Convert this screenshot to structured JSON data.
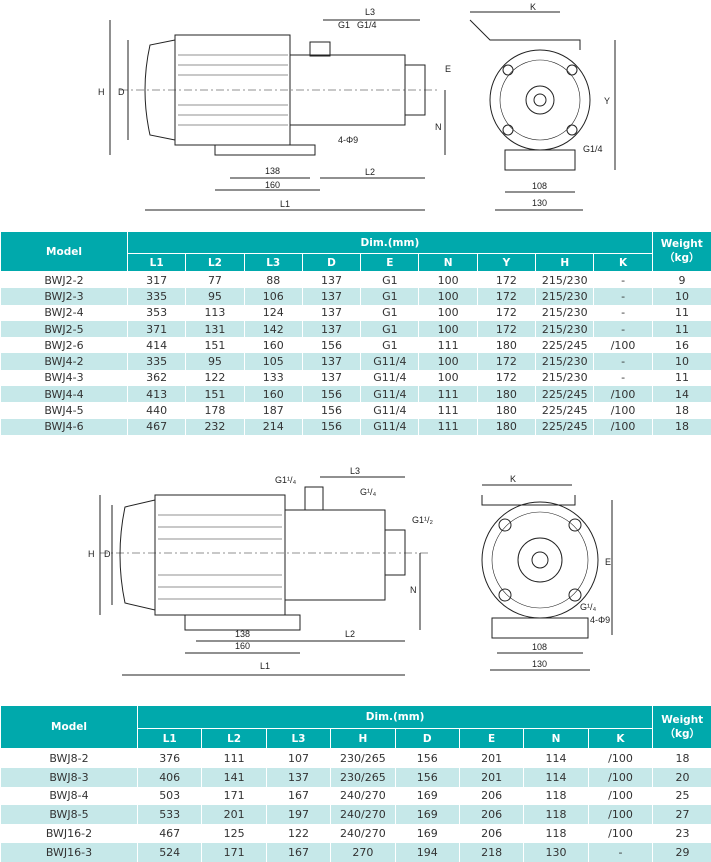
{
  "drawing1": {
    "labels": {
      "L1": "L1",
      "L2": "L2",
      "L3": "L3",
      "H": "H",
      "D": "D",
      "N": "N",
      "E": "E",
      "G1": "G1",
      "G14": "G1/4",
      "K": "K",
      "Y": "Y",
      "G14b": "G1/4",
      "holes": "4-Φ9",
      "d138": "138",
      "d160": "160",
      "d108": "108",
      "d130": "130"
    }
  },
  "table1": {
    "model_header": "Model",
    "dim_header": "Dim.(mm)",
    "weight_header": "Weight",
    "weight_unit": "（kg）",
    "columns": [
      "L1",
      "L2",
      "L3",
      "D",
      "E",
      "N",
      "Y",
      "H",
      "K"
    ],
    "rows": [
      [
        "BWJ2-2",
        "317",
        "77",
        "88",
        "137",
        "G1",
        "100",
        "172",
        "215/230",
        "-",
        "9"
      ],
      [
        "BWJ2-3",
        "335",
        "95",
        "106",
        "137",
        "G1",
        "100",
        "172",
        "215/230",
        "-",
        "10"
      ],
      [
        "BWJ2-4",
        "353",
        "113",
        "124",
        "137",
        "G1",
        "100",
        "172",
        "215/230",
        "-",
        "11"
      ],
      [
        "BWJ2-5",
        "371",
        "131",
        "142",
        "137",
        "G1",
        "100",
        "172",
        "215/230",
        "-",
        "11"
      ],
      [
        "BWJ2-6",
        "414",
        "151",
        "160",
        "156",
        "G1",
        "111",
        "180",
        "225/245",
        "/100",
        "16"
      ],
      [
        "BWJ4-2",
        "335",
        "95",
        "105",
        "137",
        "G11/4",
        "100",
        "172",
        "215/230",
        "-",
        "10"
      ],
      [
        "BWJ4-3",
        "362",
        "122",
        "133",
        "137",
        "G11/4",
        "100",
        "172",
        "215/230",
        "-",
        "11"
      ],
      [
        "BWJ4-4",
        "413",
        "151",
        "160",
        "156",
        "G11/4",
        "111",
        "180",
        "225/245",
        "/100",
        "14"
      ],
      [
        "BWJ4-5",
        "440",
        "178",
        "187",
        "156",
        "G11/4",
        "111",
        "180",
        "225/245",
        "/100",
        "18"
      ],
      [
        "BWJ4-6",
        "467",
        "232",
        "214",
        "156",
        "G11/4",
        "111",
        "180",
        "225/245",
        "/100",
        "18"
      ]
    ]
  },
  "drawing2": {
    "labels": {
      "L1": "L1",
      "L2": "L2",
      "L3": "L3",
      "H": "H",
      "D": "D",
      "N": "N",
      "E": "E",
      "G114": "G1¹/₄",
      "G14": "G¹/₄",
      "G112": "G1¹/₂",
      "K": "K",
      "G14b": "G¹/₄",
      "holes": "4-Φ9",
      "d138": "138",
      "d160": "160",
      "d108": "108",
      "d130": "130"
    }
  },
  "table2": {
    "model_header": "Model",
    "dim_header": "Dim.(mm)",
    "weight_header": "Weight",
    "weight_unit": "（kg）",
    "columns": [
      "L1",
      "L2",
      "L3",
      "H",
      "D",
      "E",
      "N",
      "K"
    ],
    "rows": [
      [
        "BWJ8-2",
        "376",
        "111",
        "107",
        "230/265",
        "156",
        "201",
        "114",
        "/100",
        "18"
      ],
      [
        "BWJ8-3",
        "406",
        "141",
        "137",
        "230/265",
        "156",
        "201",
        "114",
        "/100",
        "20"
      ],
      [
        "BWJ8-4",
        "503",
        "171",
        "167",
        "240/270",
        "169",
        "206",
        "118",
        "/100",
        "25"
      ],
      [
        "BWJ8-5",
        "533",
        "201",
        "197",
        "240/270",
        "169",
        "206",
        "118",
        "/100",
        "27"
      ],
      [
        "BWJ16-2",
        "467",
        "125",
        "122",
        "240/270",
        "169",
        "206",
        "118",
        "/100",
        "23"
      ],
      [
        "BWJ16-3",
        "524",
        "171",
        "167",
        "270",
        "194",
        "218",
        "130",
        "-",
        "29"
      ]
    ]
  }
}
